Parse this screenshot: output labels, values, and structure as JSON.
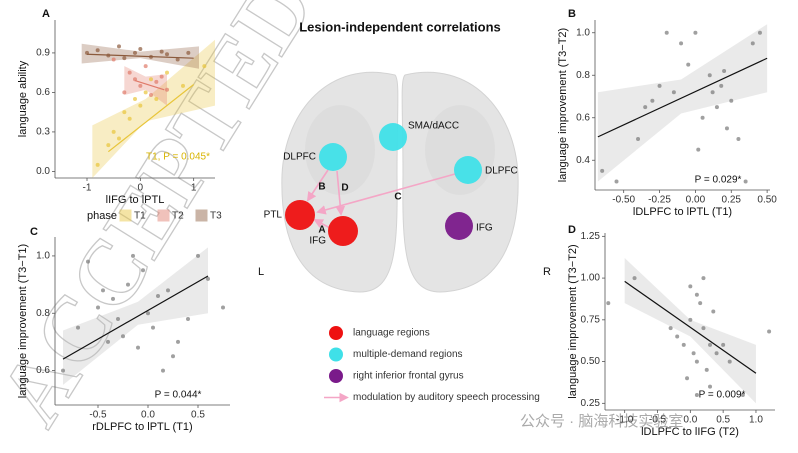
{
  "chart_data": [
    {
      "type": "scatter",
      "panel": "A",
      "xlabel": "lIFG to lPTL",
      "ylabel": "language ability",
      "xlim": [
        -1.6,
        1.4
      ],
      "ylim": [
        -0.05,
        1.15
      ],
      "xticks": [
        -1,
        0,
        1
      ],
      "yticks": [
        {
          "value": 0,
          "label": "0.0"
        },
        0.3,
        0.6,
        0.9
      ],
      "annotation": "T1, P = 0.045*",
      "legend_title": "phase",
      "series": [
        {
          "name": "T1",
          "color": "#e8c53a",
          "x": [
            -0.8,
            -0.6,
            -0.5,
            -0.4,
            -0.3,
            -0.2,
            -0.1,
            0.0,
            0.1,
            0.2,
            0.3,
            0.5,
            0.8,
            1.2
          ],
          "y": [
            0.05,
            0.2,
            0.3,
            0.25,
            0.45,
            0.4,
            0.55,
            0.5,
            0.6,
            0.7,
            0.55,
            0.75,
            0.65,
            0.8
          ],
          "fit": {
            "x": [
              -0.6,
              1.0
            ],
            "y": [
              0.15,
              0.66
            ]
          },
          "band": {
            "x": [
              -0.9,
              0.1,
              1.4
            ],
            "lower": [
              -0.05,
              0.38,
              0.5
            ],
            "upper": [
              0.35,
              0.55,
              1.0
            ]
          }
        },
        {
          "name": "T2",
          "color": "#e07a6a",
          "x": [
            -0.5,
            -0.3,
            -0.2,
            -0.1,
            0.0,
            0.1,
            0.2,
            0.3,
            0.4,
            0.5
          ],
          "y": [
            0.85,
            0.6,
            0.75,
            0.7,
            0.65,
            0.8,
            0.58,
            0.68,
            0.72,
            0.62
          ],
          "fit": {
            "x": [
              -0.1,
              0.45
            ],
            "y": [
              0.69,
              0.62
            ]
          },
          "band": {
            "x": [
              -0.3,
              0.1,
              0.5
            ],
            "lower": [
              0.58,
              0.62,
              0.5
            ],
            "upper": [
              0.8,
              0.72,
              0.74
            ]
          }
        },
        {
          "name": "T3",
          "color": "#8b5a3c",
          "x": [
            -1.0,
            -0.8,
            -0.6,
            -0.4,
            -0.3,
            -0.1,
            0.0,
            0.2,
            0.4,
            0.5,
            0.7,
            0.9
          ],
          "y": [
            0.9,
            0.92,
            0.88,
            0.95,
            0.86,
            0.9,
            0.93,
            0.87,
            0.91,
            0.89,
            0.85,
            0.9
          ],
          "fit": {
            "x": [
              -1.0,
              1.0
            ],
            "y": [
              0.89,
              0.86
            ]
          },
          "band": {
            "x": [
              -1.1,
              0.0,
              1.1
            ],
            "lower": [
              0.82,
              0.86,
              0.78
            ],
            "upper": [
              0.97,
              0.91,
              0.95
            ]
          }
        }
      ]
    },
    {
      "type": "scatter",
      "panel": "B",
      "xlabel": "lDLPFC to lPTL (T1)",
      "ylabel": "language improvement (T3−T2)",
      "xlim": [
        -0.7,
        0.52
      ],
      "ylim": [
        0.26,
        1.06
      ],
      "xticks": [
        {
          "value": -0.5,
          "label": "-0.50"
        },
        {
          "value": -0.25,
          "label": "-0.25"
        },
        {
          "value": 0,
          "label": "0.00"
        },
        {
          "value": 0.25,
          "label": "0.25"
        },
        {
          "value": 0.5,
          "label": "0.50"
        }
      ],
      "yticks": [
        0.4,
        0.6,
        0.8,
        {
          "value": 1,
          "label": "1.0"
        }
      ],
      "annotation": "P = 0.029*",
      "series": [
        {
          "name": "points",
          "color": "#777777",
          "x": [
            -0.65,
            -0.55,
            -0.4,
            -0.35,
            -0.3,
            -0.25,
            -0.2,
            -0.15,
            -0.1,
            -0.05,
            0.0,
            0.02,
            0.05,
            0.1,
            0.12,
            0.15,
            0.18,
            0.2,
            0.22,
            0.25,
            0.3,
            0.35,
            0.4,
            0.45
          ],
          "y": [
            0.35,
            0.3,
            0.5,
            0.65,
            0.68,
            0.75,
            1.0,
            0.72,
            0.95,
            0.85,
            1.0,
            0.45,
            0.6,
            0.8,
            0.72,
            0.65,
            0.75,
            0.82,
            0.55,
            0.68,
            0.5,
            0.3,
            0.95,
            1.0
          ],
          "fit": {
            "x": [
              -0.68,
              0.5
            ],
            "y": [
              0.51,
              0.88
            ]
          },
          "band": {
            "x": [
              -0.68,
              -0.1,
              0.5
            ],
            "lower": [
              0.3,
              0.62,
              0.72
            ],
            "upper": [
              0.72,
              0.78,
              1.04
            ]
          }
        }
      ]
    },
    {
      "type": "scatter",
      "panel": "C",
      "xlabel": "rDLPFC to lPTL (T1)",
      "ylabel": "language improvement (T3−T1)",
      "xlim": [
        -0.93,
        0.82
      ],
      "ylim": [
        0.48,
        1.066
      ],
      "xticks": [
        -0.5,
        {
          "value": 0,
          "label": "0.0"
        },
        0.5
      ],
      "yticks": [
        0.6,
        0.8,
        {
          "value": 1,
          "label": "1.0"
        }
      ],
      "annotation": "P = 0.044*",
      "series": [
        {
          "name": "points",
          "color": "#777777",
          "x": [
            -0.85,
            -0.7,
            -0.6,
            -0.5,
            -0.45,
            -0.4,
            -0.35,
            -0.3,
            -0.25,
            -0.2,
            -0.15,
            -0.1,
            -0.05,
            0.0,
            0.05,
            0.1,
            0.15,
            0.2,
            0.25,
            0.3,
            0.4,
            0.5,
            0.6,
            0.75
          ],
          "y": [
            0.6,
            0.75,
            0.98,
            0.82,
            0.88,
            0.7,
            0.85,
            0.78,
            0.72,
            0.9,
            1.0,
            0.68,
            0.95,
            0.8,
            0.75,
            0.86,
            0.6,
            0.88,
            0.65,
            0.7,
            0.78,
            1.0,
            0.92,
            0.82
          ],
          "fit": {
            "x": [
              -0.85,
              0.6
            ],
            "y": [
              0.64,
              0.93
            ]
          },
          "band": {
            "x": [
              -0.85,
              -0.1,
              0.6
            ],
            "lower": [
              0.55,
              0.76,
              0.8
            ],
            "upper": [
              0.74,
              0.84,
              1.03
            ]
          }
        }
      ]
    },
    {
      "type": "scatter",
      "panel": "D",
      "xlabel": "lDLPFC to lIFG (T2)",
      "ylabel": "language improvement (T3−T2)",
      "xlim": [
        -1.3,
        1.29
      ],
      "ylim": [
        0.21,
        1.27
      ],
      "xticks": [
        {
          "value": -1,
          "label": "-1.0"
        },
        -0.5,
        {
          "value": 0,
          "label": "0.0"
        },
        0.5,
        {
          "value": 1,
          "label": "1.0"
        }
      ],
      "yticks": [
        0.25,
        {
          "value": 0.5,
          "label": "0.50"
        },
        0.75,
        {
          "value": 1,
          "label": "1.00"
        },
        1.25
      ],
      "annotation": "P = 0.009*",
      "series": [
        {
          "name": "points",
          "color": "#777777",
          "x": [
            -1.25,
            -0.85,
            -0.3,
            -0.2,
            -0.1,
            0.0,
            0.0,
            0.05,
            0.1,
            0.1,
            0.15,
            0.2,
            0.2,
            0.25,
            0.3,
            0.3,
            0.35,
            0.4,
            0.5,
            0.6,
            0.8,
            1.2,
            -0.05,
            0.1
          ],
          "y": [
            0.85,
            1.0,
            0.7,
            0.65,
            0.6,
            0.75,
            0.95,
            0.55,
            0.9,
            0.5,
            0.85,
            1.0,
            0.7,
            0.45,
            0.6,
            0.35,
            0.8,
            0.55,
            0.6,
            0.5,
            0.3,
            0.68,
            0.4,
            0.3
          ],
          "fit": {
            "x": [
              -1.0,
              1.0
            ],
            "y": [
              0.98,
              0.43
            ]
          },
          "band": {
            "x": [
              -1.0,
              0.0,
              1.0
            ],
            "lower": [
              0.85,
              0.65,
              0.25
            ],
            "upper": [
              1.12,
              0.75,
              0.6
            ]
          }
        }
      ]
    }
  ],
  "diagram": {
    "title": "Lesion-independent correlations",
    "left": "L",
    "right": "R",
    "nodes": [
      {
        "label": "SMA/dACC",
        "color": "#3fe0e8"
      },
      {
        "label": "DLPFC",
        "color": "#3fe0e8"
      },
      {
        "label": "DLPFC",
        "color": "#3fe0e8"
      },
      {
        "label": "PTL",
        "color": "#ee1111"
      },
      {
        "label": "IFG",
        "color": "#ee1111"
      },
      {
        "label": "IFG",
        "color": "#7a1a8a"
      }
    ],
    "edges": [
      "B",
      "D",
      "C",
      "A"
    ],
    "legend": [
      {
        "label": "language regions",
        "color": "#ee1111"
      },
      {
        "label": "multiple-demand regions",
        "color": "#3fe0e8"
      },
      {
        "label": "right inferior frontal gyrus",
        "color": "#7a1a8a"
      },
      {
        "label": "modulation by auditory speech processing",
        "color": "#f4a6c6"
      }
    ]
  },
  "watermark": "ACCEPTED",
  "footer": "公众号 · 脑海科技实验室"
}
